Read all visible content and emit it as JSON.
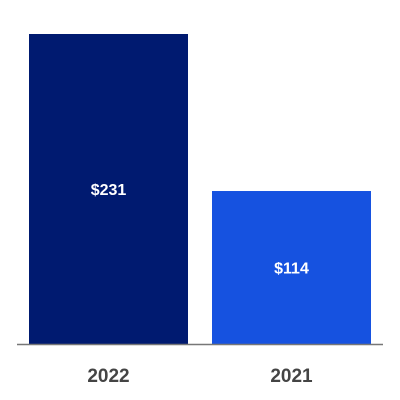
{
  "chart_data": {
    "type": "bar",
    "categories": [
      "2022",
      "2021"
    ],
    "values": [
      231,
      114
    ],
    "value_labels": [
      "$231",
      "$114"
    ],
    "colors": [
      "#001a70",
      "#1652e0"
    ]
  }
}
